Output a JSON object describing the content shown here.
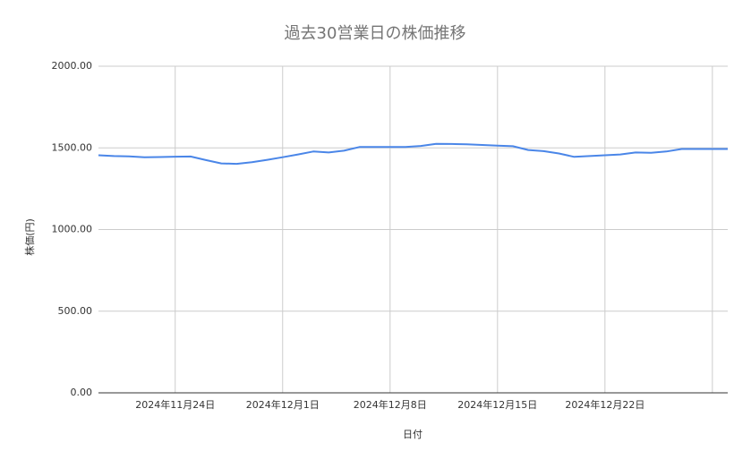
{
  "chart_data": {
    "type": "line",
    "title": "過去30営業日の株価推移",
    "x_label": "日付",
    "y_label": "株価(円)",
    "x": [
      "2024-11-19",
      "2024-11-20",
      "2024-11-21",
      "2024-11-22",
      "2024-11-23",
      "2024-11-24",
      "2024-11-25",
      "2024-11-26",
      "2024-11-27",
      "2024-11-28",
      "2024-11-29",
      "2024-11-30",
      "2024-12-01",
      "2024-12-02",
      "2024-12-03",
      "2024-12-04",
      "2024-12-05",
      "2024-12-06",
      "2024-12-07",
      "2024-12-08",
      "2024-12-09",
      "2024-12-10",
      "2024-12-11",
      "2024-12-12",
      "2024-12-13",
      "2024-12-14",
      "2024-12-15",
      "2024-12-16",
      "2024-12-17",
      "2024-12-18",
      "2024-12-19",
      "2024-12-20",
      "2024-12-21",
      "2024-12-22",
      "2024-12-23",
      "2024-12-24",
      "2024-12-25",
      "2024-12-26",
      "2024-12-27",
      "2024-12-28",
      "2024-12-29",
      "2024-12-30"
    ],
    "series": [
      {
        "color": "#4a86e8",
        "values": [
          1455,
          1450,
          1448,
          1443,
          1444,
          1446,
          1447,
          1425,
          1405,
          1402,
          1412,
          1427,
          1443,
          1460,
          1478,
          1472,
          1483,
          1505,
          1505,
          1505,
          1505,
          1512,
          1525,
          1524,
          1522,
          1518,
          1514,
          1510,
          1487,
          1480,
          1466,
          1445,
          1450,
          1455,
          1460,
          1472,
          1470,
          1478,
          1493,
          1493,
          1493,
          1493
        ]
      }
    ],
    "xlim": [
      "2024-11-19",
      "2024-12-30"
    ],
    "xticks": [
      {
        "value": "2024-11-24",
        "label": "2024年11月24日"
      },
      {
        "value": "2024-12-01",
        "label": "2024年12月1日"
      },
      {
        "value": "2024-12-08",
        "label": "2024年12月8日"
      },
      {
        "value": "2024-12-15",
        "label": "2024年12月15日"
      },
      {
        "value": "2024-12-22",
        "label": "2024年12月22日"
      },
      {
        "value": "2024-12-29",
        "label": null
      }
    ],
    "ylim": [
      0,
      2000
    ],
    "yticks": [
      {
        "value": 0,
        "label": "0.00"
      },
      {
        "value": 500,
        "label": "500.00"
      },
      {
        "value": 1000,
        "label": "1000.00"
      },
      {
        "value": 1500,
        "label": "1500.00"
      },
      {
        "value": 2000,
        "label": "2000.00"
      }
    ],
    "grid": true
  }
}
